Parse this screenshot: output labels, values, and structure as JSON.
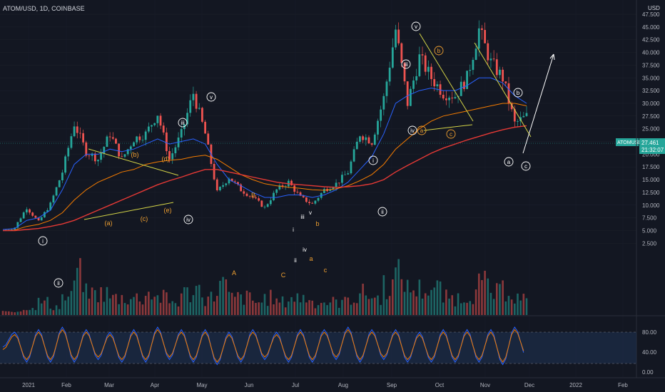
{
  "header": {
    "symbol_title": "ATOM/USD, 1D, COINBASE"
  },
  "price_axis": {
    "currency": "USD",
    "ticks": [
      "47.500",
      "45.000",
      "42.500",
      "40.000",
      "37.500",
      "35.000",
      "32.500",
      "30.000",
      "27.500",
      "25.000",
      "22.500",
      "20.000",
      "17.500",
      "15.000",
      "12.500",
      "10.000",
      "7.500",
      "5.000",
      "2.500"
    ],
    "last_price_label": {
      "symbol": "ATOMUSD",
      "price": "27.461",
      "countdown": "21:32:07"
    }
  },
  "time_axis": {
    "ticks": [
      "2021",
      "Feb",
      "Mar",
      "Apr",
      "May",
      "Jun",
      "Jul",
      "Aug",
      "Sep",
      "Oct",
      "Nov",
      "Dec",
      "2022",
      "Feb"
    ]
  },
  "oscillator_axis": {
    "ticks": [
      "80.00",
      "40.00",
      "0.00"
    ]
  },
  "colors": {
    "background": "#131722",
    "candle_up": "#26a69a",
    "candle_down": "#ef5350",
    "ma_fast": "#2962ff",
    "ma_mid": "#f57c00",
    "ma_slow": "#e53935",
    "trendline": "#d4d447",
    "wave_white": "#ffffff",
    "wave_orange": "#f0a030",
    "stoch_k": "#2962ff",
    "stoch_d": "#f57c00",
    "last_price_bg": "#26a69a"
  },
  "chart_data": [
    {
      "type": "candlestick",
      "title": "ATOM/USD, 1D, COINBASE",
      "ylabel": "USD",
      "ylim": [
        0,
        48
      ],
      "x": [
        "2020-12-20",
        "2021-01-01",
        "2021-01-10",
        "2021-01-20",
        "2021-02-01",
        "2021-02-10",
        "2021-02-15",
        "2021-02-25",
        "2021-03-05",
        "2021-03-12",
        "2021-03-20",
        "2021-03-28",
        "2021-04-05",
        "2021-04-14",
        "2021-04-20",
        "2021-04-28",
        "2021-05-06",
        "2021-05-14",
        "2021-05-20",
        "2021-05-28",
        "2021-06-05",
        "2021-06-15",
        "2021-06-22",
        "2021-07-01",
        "2021-07-08",
        "2021-07-14",
        "2021-07-20",
        "2021-07-28",
        "2021-08-05",
        "2021-08-15",
        "2021-08-25",
        "2021-09-01",
        "2021-09-10",
        "2021-09-14",
        "2021-09-21",
        "2021-09-28",
        "2021-10-05",
        "2021-10-12",
        "2021-10-20",
        "2021-10-28",
        "2021-11-04",
        "2021-11-10",
        "2021-11-18",
        "2021-11-25",
        "2021-11-29"
      ],
      "close": [
        5.0,
        5.6,
        9.5,
        6.7,
        10.2,
        16.5,
        26.0,
        20.5,
        19.0,
        24.0,
        19.0,
        23.0,
        24.0,
        28.0,
        19.0,
        24.0,
        32.0,
        24.0,
        12.5,
        15.5,
        13.0,
        11.5,
        9.5,
        13.0,
        14.5,
        11.5,
        10.2,
        13.0,
        14.2,
        16.5,
        24.0,
        22.5,
        31.0,
        44.5,
        30.0,
        39.0,
        35.0,
        32.0,
        31.5,
        35.0,
        44.5,
        38.0,
        35.0,
        26.0,
        27.461
      ],
      "series": [
        {
          "name": "MA fast",
          "values": [
            5.2,
            5.4,
            7.0,
            7.5,
            9.0,
            13.0,
            18.0,
            20.0,
            20.0,
            21.0,
            20.5,
            21.0,
            22.0,
            23.0,
            22.0,
            22.5,
            23.0,
            22.0,
            18.0,
            15.0,
            13.8,
            12.5,
            11.5,
            11.5,
            12.0,
            12.0,
            11.5,
            12.0,
            13.0,
            14.5,
            17.0,
            19.5,
            24.0,
            30.0,
            31.5,
            32.5,
            33.0,
            32.5,
            32.5,
            33.5,
            35.0,
            35.0,
            34.0,
            31.5,
            30.0
          ]
        },
        {
          "name": "MA mid",
          "values": [
            5.0,
            5.1,
            5.8,
            6.2,
            7.0,
            8.5,
            11.0,
            13.0,
            14.5,
            15.5,
            16.5,
            17.0,
            18.0,
            18.5,
            18.8,
            19.0,
            19.5,
            19.8,
            19.0,
            17.5,
            16.0,
            15.0,
            14.2,
            13.8,
            13.5,
            13.3,
            13.0,
            12.9,
            13.2,
            13.8,
            14.8,
            16.0,
            18.0,
            21.0,
            23.0,
            25.0,
            26.5,
            27.5,
            28.0,
            28.5,
            29.0,
            29.5,
            30.0,
            30.0,
            29.5
          ]
        },
        {
          "name": "MA slow",
          "values": [
            5.0,
            5.0,
            5.2,
            5.4,
            5.8,
            6.3,
            7.0,
            8.0,
            9.0,
            10.0,
            11.0,
            12.0,
            13.0,
            14.0,
            14.8,
            15.5,
            16.3,
            17.0,
            17.0,
            16.5,
            16.0,
            15.5,
            15.0,
            14.5,
            14.2,
            14.0,
            13.8,
            13.6,
            13.5,
            13.6,
            13.8,
            14.2,
            15.0,
            16.5,
            17.8,
            19.0,
            20.2,
            21.2,
            22.0,
            22.8,
            23.5,
            24.2,
            24.8,
            25.3,
            25.6
          ]
        }
      ]
    },
    {
      "type": "bar",
      "title": "Volume",
      "values": [
        1,
        1,
        2,
        3,
        2,
        4,
        9,
        5,
        5,
        4,
        4,
        4,
        5,
        4,
        3,
        5,
        6,
        4,
        7,
        4,
        4,
        3,
        4,
        3,
        4,
        4,
        3,
        3,
        3,
        4,
        5,
        4,
        7,
        9,
        6,
        6,
        6,
        4,
        4,
        5,
        7,
        5,
        6,
        4,
        3
      ]
    },
    {
      "type": "line",
      "title": "Stochastic RSI",
      "ylim": [
        0,
        100
      ],
      "series": [
        {
          "name": "K",
          "values": [
            50,
            80,
            20,
            85,
            20,
            90,
            20,
            85,
            25,
            80,
            20,
            85,
            20,
            90,
            25,
            85,
            20,
            85,
            15,
            80,
            20,
            85,
            25,
            80,
            20,
            85,
            20,
            85,
            25,
            90,
            20,
            85,
            25,
            85,
            20,
            80,
            20,
            85,
            20,
            85,
            20,
            85,
            15,
            90,
            30
          ]
        },
        {
          "name": "D",
          "values": [
            45,
            75,
            25,
            80,
            25,
            85,
            25,
            80,
            30,
            75,
            25,
            80,
            25,
            85,
            30,
            80,
            25,
            80,
            20,
            75,
            25,
            80,
            30,
            75,
            25,
            80,
            25,
            80,
            30,
            85,
            25,
            80,
            30,
            80,
            25,
            75,
            25,
            80,
            25,
            80,
            25,
            80,
            20,
            85,
            35
          ]
        }
      ]
    }
  ],
  "wave_labels": {
    "circled": [
      "i",
      "ii",
      "iii",
      "iv",
      "v",
      "i",
      "ii",
      "iii",
      "iv",
      "v",
      "a",
      "b",
      "c"
    ],
    "parenthesized": [
      "(a)",
      "(b)",
      "(c)",
      "(d)",
      "(e)"
    ],
    "plain": [
      "A",
      "B",
      "C",
      "a",
      "b",
      "c",
      "i",
      "ii",
      "iii",
      "iv",
      "v"
    ],
    "orange_circled": [
      "a",
      "b",
      "c"
    ]
  }
}
